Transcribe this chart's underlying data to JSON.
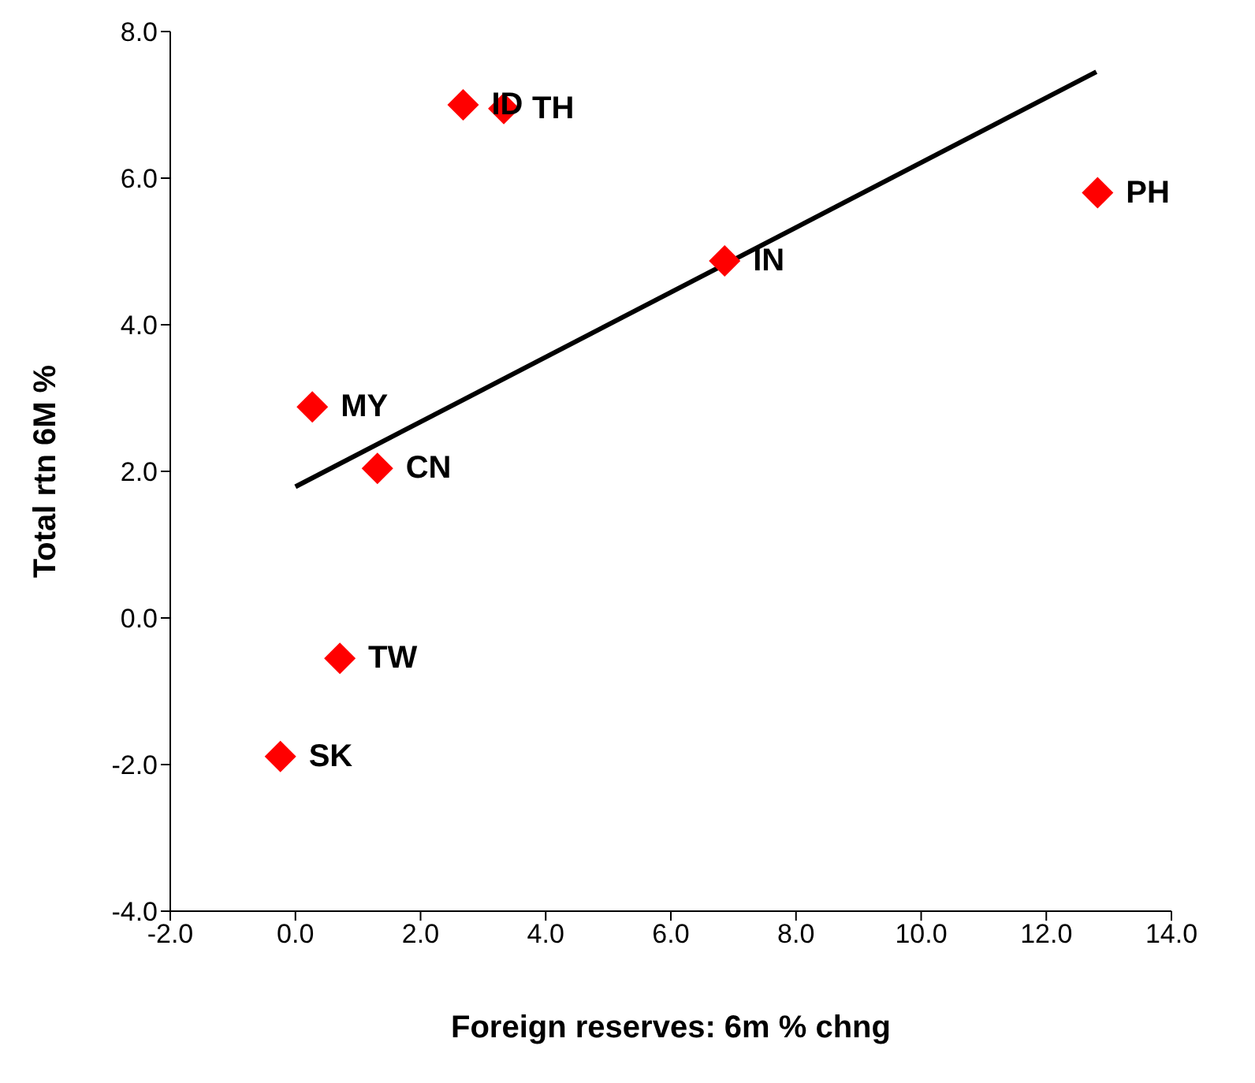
{
  "chart_data": {
    "type": "scatter",
    "xlabel": "Foreign reserves:  6m % chng",
    "ylabel": "Total rtn 6M %",
    "series": [
      {
        "color": "#ff0000",
        "marker": "diamond",
        "x": [
          2.68,
          3.33,
          12.82,
          6.86,
          0.27,
          1.31,
          0.71,
          -0.24
        ],
        "values": [
          7.0,
          6.95,
          5.8,
          4.87,
          2.88,
          2.04,
          -0.55,
          -1.89
        ]
      },
      {
        "type": "line",
        "color": "#000000",
        "marker": "none",
        "x": [
          0,
          12.8
        ],
        "values": [
          1.79,
          7.45
        ]
      }
    ],
    "annotations": [
      {
        "text": "ID",
        "x": 2.68,
        "y": 7.0
      },
      {
        "text": "TH",
        "x": 3.33,
        "y": 6.95
      },
      {
        "text": "PH",
        "x": 12.82,
        "y": 5.8
      },
      {
        "text": "IN",
        "x": 6.86,
        "y": 4.87
      },
      {
        "text": "MY",
        "x": 0.27,
        "y": 2.88
      },
      {
        "text": "CN",
        "x": 1.31,
        "y": 2.04
      },
      {
        "text": "TW",
        "x": 0.71,
        "y": -0.55
      },
      {
        "text": "SK",
        "x": -0.24,
        "y": -1.89
      }
    ],
    "xlim": [
      -2,
      14
    ],
    "ylim": [
      -4,
      8
    ],
    "xticks": [
      {
        "value": -2,
        "label": "-2.0"
      },
      {
        "value": 0,
        "label": "0.0"
      },
      {
        "value": 2,
        "label": "2.0"
      },
      {
        "value": 4,
        "label": "4.0"
      },
      {
        "value": 6,
        "label": "6.0"
      },
      {
        "value": 8,
        "label": "8.0"
      },
      {
        "value": 10,
        "label": "10.0"
      },
      {
        "value": 12,
        "label": "12.0"
      },
      {
        "value": 14,
        "label": "14.0"
      }
    ],
    "yticks": [
      {
        "value": -4,
        "label": "-4.0"
      },
      {
        "value": -2,
        "label": "-2.0"
      },
      {
        "value": 0,
        "label": "0.0"
      },
      {
        "value": 2,
        "label": "2.0"
      },
      {
        "value": 4,
        "label": "4.0"
      },
      {
        "value": 6,
        "label": "6.0"
      },
      {
        "value": 8,
        "label": "8.0"
      }
    ],
    "grid": false,
    "legend": false
  }
}
